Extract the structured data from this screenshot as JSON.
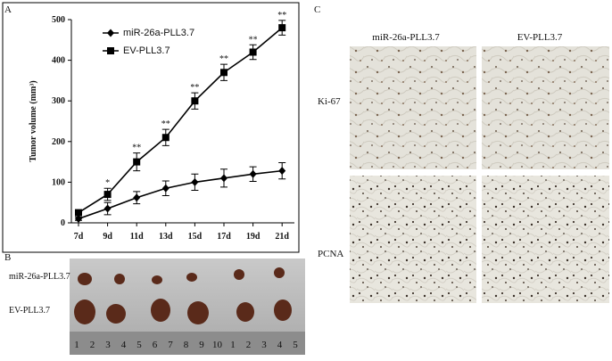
{
  "panel_labels": [
    "A",
    "B",
    "C"
  ],
  "chart_data": {
    "type": "line",
    "ylabel": "Tumor volume (mm³)",
    "categories": [
      "7d",
      "9d",
      "11d",
      "13d",
      "15d",
      "17d",
      "19d",
      "21d"
    ],
    "series": [
      {
        "name": "miR-26a-PLL3.7",
        "color": "#000000",
        "marker": "diamond",
        "values": [
          10,
          35,
          62,
          85,
          100,
          110,
          120,
          128
        ],
        "errors": [
          4,
          15,
          15,
          18,
          20,
          22,
          18,
          20
        ]
      },
      {
        "name": "EV-PLL3.7",
        "color": "#000000",
        "marker": "square",
        "values": [
          25,
          70,
          150,
          210,
          300,
          370,
          420,
          480
        ],
        "errors": [
          5,
          15,
          22,
          20,
          20,
          20,
          18,
          18
        ]
      }
    ],
    "significance": [
      null,
      "*",
      "**",
      "**",
      "**",
      "**",
      "**",
      "**"
    ],
    "ylim": [
      0,
      500
    ],
    "yticks": [
      0,
      100,
      200,
      300,
      400,
      500
    ]
  },
  "panel_b": {
    "row_labels": [
      "miR-26a-PLL3.7",
      "EV-PLL3.7"
    ],
    "ruler_labels": [
      "1",
      "2",
      "3",
      "4",
      "5",
      "6",
      "7",
      "8",
      "9",
      "10",
      "1",
      "2",
      "3",
      "4",
      "5"
    ]
  },
  "panel_c": {
    "column_labels": [
      "miR-26a-PLL3.7",
      "EV-PLL3.7"
    ],
    "row_labels": [
      "Ki-67",
      "PCNA"
    ]
  }
}
